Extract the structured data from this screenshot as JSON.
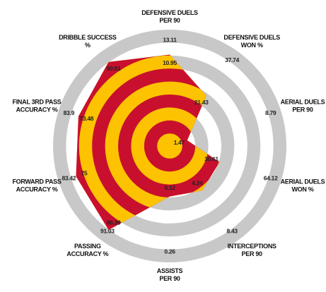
{
  "chart_data": {
    "type": "radar",
    "categories": [
      [
        "DEFENSIVE DUELS",
        "PER 90"
      ],
      [
        "DEFENSIVE DUELS",
        "WON %"
      ],
      [
        "AERIAL DUELS",
        "PER 90"
      ],
      [
        "AERIAL DUELS",
        "WON %"
      ],
      [
        "INTERCEPTIONS",
        "PER 90"
      ],
      [
        "ASSISTS",
        "PER 90"
      ],
      [
        "PASSING",
        "ACCURACY %"
      ],
      [
        "FORWARD PASS",
        "ACCURACY %"
      ],
      [
        "FINAL 3RD PASS",
        "ACCURACY %"
      ],
      [
        "DRIBBLE SUCCESS",
        "%"
      ]
    ],
    "values": [
      10.95,
      21.43,
      1.47,
      30.61,
      4.24,
      0.12,
      86.39,
      75,
      73.48,
      90.91
    ],
    "reference": [
      13.11,
      37.74,
      8.79,
      64.12,
      8.43,
      0.26,
      91.03,
      83.42,
      83.9,
      null
    ],
    "colors": {
      "ring": "#c8c8c8",
      "fill_a": "#c8102e",
      "fill_b": "#fdc300"
    }
  }
}
